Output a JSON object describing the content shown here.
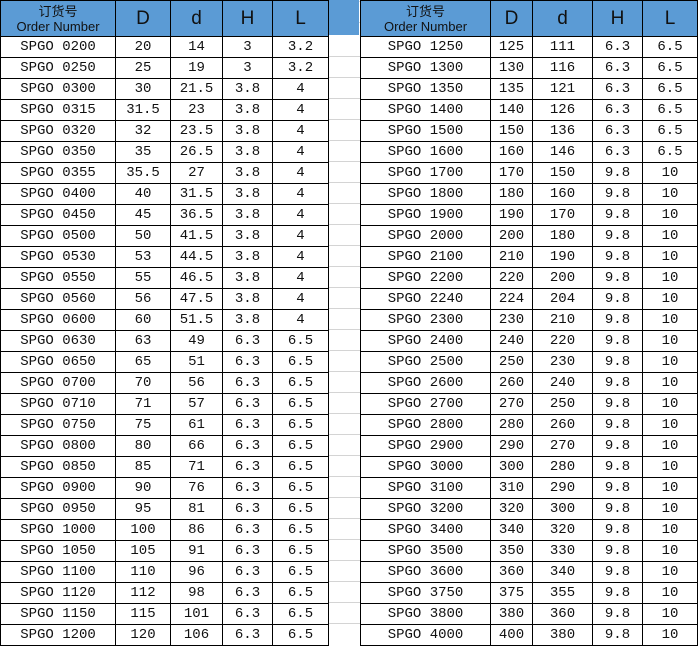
{
  "header": {
    "order_cn": "订货号",
    "order_en": "Order Number",
    "D": "D",
    "d": "d",
    "H": "H",
    "L": "L"
  },
  "colors": {
    "header_bg": "#5b9bd5"
  },
  "left_rows": [
    [
      "SPGO 0200",
      "20",
      "14",
      "3",
      "3.2"
    ],
    [
      "SPGO 0250",
      "25",
      "19",
      "3",
      "3.2"
    ],
    [
      "SPGO 0300",
      "30",
      "21.5",
      "3.8",
      "4"
    ],
    [
      "SPGO 0315",
      "31.5",
      "23",
      "3.8",
      "4"
    ],
    [
      "SPGO 0320",
      "32",
      "23.5",
      "3.8",
      "4"
    ],
    [
      "SPGO 0350",
      "35",
      "26.5",
      "3.8",
      "4"
    ],
    [
      "SPGO 0355",
      "35.5",
      "27",
      "3.8",
      "4"
    ],
    [
      "SPGO 0400",
      "40",
      "31.5",
      "3.8",
      "4"
    ],
    [
      "SPGO 0450",
      "45",
      "36.5",
      "3.8",
      "4"
    ],
    [
      "SPGO 0500",
      "50",
      "41.5",
      "3.8",
      "4"
    ],
    [
      "SPGO 0530",
      "53",
      "44.5",
      "3.8",
      "4"
    ],
    [
      "SPGO 0550",
      "55",
      "46.5",
      "3.8",
      "4"
    ],
    [
      "SPGO 0560",
      "56",
      "47.5",
      "3.8",
      "4"
    ],
    [
      "SPGO 0600",
      "60",
      "51.5",
      "3.8",
      "4"
    ],
    [
      "SPGO 0630",
      "63",
      "49",
      "6.3",
      "6.5"
    ],
    [
      "SPGO 0650",
      "65",
      "51",
      "6.3",
      "6.5"
    ],
    [
      "SPGO 0700",
      "70",
      "56",
      "6.3",
      "6.5"
    ],
    [
      "SPGO 0710",
      "71",
      "57",
      "6.3",
      "6.5"
    ],
    [
      "SPGO 0750",
      "75",
      "61",
      "6.3",
      "6.5"
    ],
    [
      "SPGO 0800",
      "80",
      "66",
      "6.3",
      "6.5"
    ],
    [
      "SPGO 0850",
      "85",
      "71",
      "6.3",
      "6.5"
    ],
    [
      "SPGO 0900",
      "90",
      "76",
      "6.3",
      "6.5"
    ],
    [
      "SPGO 0950",
      "95",
      "81",
      "6.3",
      "6.5"
    ],
    [
      "SPGO 1000",
      "100",
      "86",
      "6.3",
      "6.5"
    ],
    [
      "SPGO 1050",
      "105",
      "91",
      "6.3",
      "6.5"
    ],
    [
      "SPGO 1100",
      "110",
      "96",
      "6.3",
      "6.5"
    ],
    [
      "SPGO 1120",
      "112",
      "98",
      "6.3",
      "6.5"
    ],
    [
      "SPGO 1150",
      "115",
      "101",
      "6.3",
      "6.5"
    ],
    [
      "SPGO 1200",
      "120",
      "106",
      "6.3",
      "6.5"
    ]
  ],
  "right_rows": [
    [
      "SPGO 1250",
      "125",
      "111",
      "6.3",
      "6.5"
    ],
    [
      "SPGO 1300",
      "130",
      "116",
      "6.3",
      "6.5"
    ],
    [
      "SPGO 1350",
      "135",
      "121",
      "6.3",
      "6.5"
    ],
    [
      "SPGO 1400",
      "140",
      "126",
      "6.3",
      "6.5"
    ],
    [
      "SPGO 1500",
      "150",
      "136",
      "6.3",
      "6.5"
    ],
    [
      "SPGO 1600",
      "160",
      "146",
      "6.3",
      "6.5"
    ],
    [
      "SPGO 1700",
      "170",
      "150",
      "9.8",
      "10"
    ],
    [
      "SPGO 1800",
      "180",
      "160",
      "9.8",
      "10"
    ],
    [
      "SPGO 1900",
      "190",
      "170",
      "9.8",
      "10"
    ],
    [
      "SPGO 2000",
      "200",
      "180",
      "9.8",
      "10"
    ],
    [
      "SPGO 2100",
      "210",
      "190",
      "9.8",
      "10"
    ],
    [
      "SPGO 2200",
      "220",
      "200",
      "9.8",
      "10"
    ],
    [
      "SPGO 2240",
      "224",
      "204",
      "9.8",
      "10"
    ],
    [
      "SPGO 2300",
      "230",
      "210",
      "9.8",
      "10"
    ],
    [
      "SPGO 2400",
      "240",
      "220",
      "9.8",
      "10"
    ],
    [
      "SPGO 2500",
      "250",
      "230",
      "9.8",
      "10"
    ],
    [
      "SPGO 2600",
      "260",
      "240",
      "9.8",
      "10"
    ],
    [
      "SPGO 2700",
      "270",
      "250",
      "9.8",
      "10"
    ],
    [
      "SPGO 2800",
      "280",
      "260",
      "9.8",
      "10"
    ],
    [
      "SPGO 2900",
      "290",
      "270",
      "9.8",
      "10"
    ],
    [
      "SPGO 3000",
      "300",
      "280",
      "9.8",
      "10"
    ],
    [
      "SPGO 3100",
      "310",
      "290",
      "9.8",
      "10"
    ],
    [
      "SPGO 3200",
      "320",
      "300",
      "9.8",
      "10"
    ],
    [
      "SPGO 3400",
      "340",
      "320",
      "9.8",
      "10"
    ],
    [
      "SPGO 3500",
      "350",
      "330",
      "9.8",
      "10"
    ],
    [
      "SPGO 3600",
      "360",
      "340",
      "9.8",
      "10"
    ],
    [
      "SPGO 3750",
      "375",
      "355",
      "9.8",
      "10"
    ],
    [
      "SPGO 3800",
      "380",
      "360",
      "9.8",
      "10"
    ],
    [
      "SPGO 4000",
      "400",
      "380",
      "9.8",
      "10"
    ]
  ]
}
